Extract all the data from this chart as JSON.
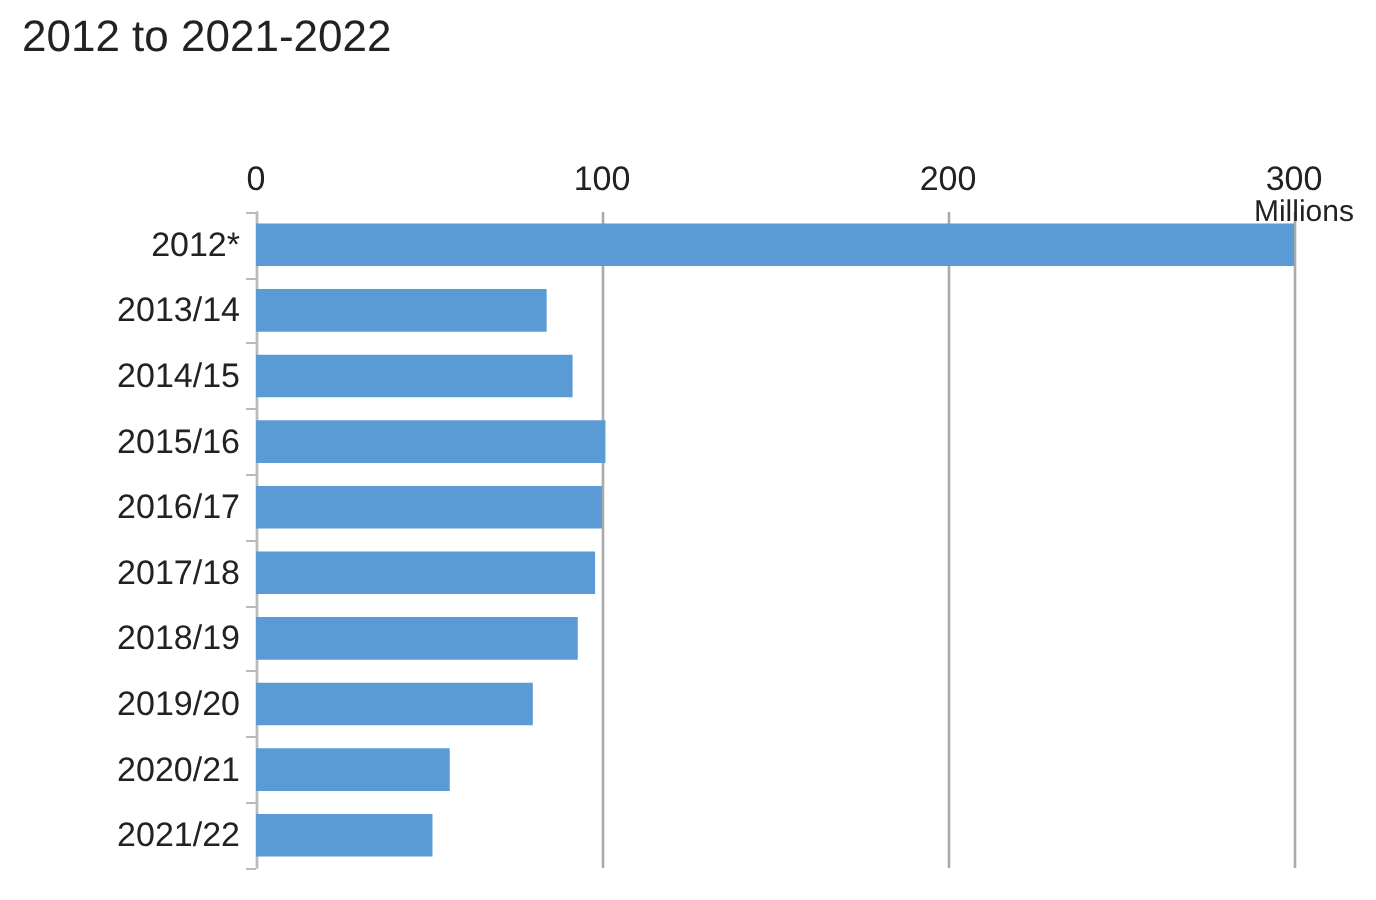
{
  "chart_data": {
    "type": "bar",
    "orientation": "horizontal",
    "title": "2012 to 2021-2022",
    "xlabel": "Millions",
    "categories": [
      "2012*",
      "2013/14",
      "2014/15",
      "2015/16",
      "2016/17",
      "2017/18",
      "2018/19",
      "2019/20",
      "2020/21",
      "2021/22"
    ],
    "values": [
      300,
      84,
      91.5,
      101,
      100,
      98,
      93,
      80,
      56,
      51
    ],
    "color": "#5b9bd5",
    "xlim": [
      0,
      300
    ],
    "xticks": [
      0,
      100,
      200,
      300
    ],
    "grid": "x"
  }
}
